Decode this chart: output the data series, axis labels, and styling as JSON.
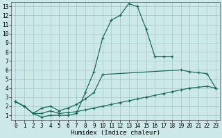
{
  "xlabel": "Humidex (Indice chaleur)",
  "background_color": "#cce8e8",
  "grid_color": "#aacccc",
  "line_color": "#1a6b5a",
  "xlim": [
    -0.5,
    23.5
  ],
  "ylim": [
    0.5,
    13.5
  ],
  "xticks": [
    0,
    1,
    2,
    3,
    4,
    5,
    6,
    7,
    8,
    9,
    10,
    11,
    12,
    13,
    14,
    15,
    16,
    17,
    18,
    19,
    20,
    21,
    22,
    23
  ],
  "yticks": [
    1,
    2,
    3,
    4,
    5,
    6,
    7,
    8,
    9,
    10,
    11,
    12,
    13
  ],
  "line1_x": [
    0,
    1,
    2,
    3,
    4,
    5,
    6,
    7,
    8,
    9,
    10,
    11,
    12,
    13,
    14,
    15,
    16,
    17,
    18
  ],
  "line1_y": [
    2.5,
    2.0,
    1.2,
    0.8,
    1.0,
    1.0,
    1.0,
    1.2,
    3.5,
    5.8,
    9.5,
    11.5,
    12.0,
    13.3,
    13.0,
    10.5,
    7.5,
    7.5,
    7.5
  ],
  "line2_x": [
    0,
    1,
    2,
    3,
    4,
    5,
    6,
    7,
    8,
    9,
    10,
    19,
    20,
    21,
    22,
    23
  ],
  "line2_y": [
    2.5,
    2.0,
    1.2,
    1.8,
    2.0,
    1.5,
    1.8,
    2.2,
    2.8,
    3.5,
    5.5,
    6.0,
    5.8,
    5.7,
    5.6,
    4.0
  ],
  "line3_x": [
    0,
    1,
    2,
    3,
    4,
    5,
    6,
    7,
    8,
    9,
    10,
    11,
    12,
    13,
    14,
    15,
    16,
    17,
    18,
    19,
    20,
    21,
    22,
    23
  ],
  "line3_y": [
    2.5,
    2.0,
    1.2,
    1.2,
    1.5,
    1.2,
    1.3,
    1.4,
    1.6,
    1.8,
    2.0,
    2.2,
    2.4,
    2.6,
    2.8,
    3.0,
    3.2,
    3.4,
    3.6,
    3.8,
    4.0,
    4.1,
    4.2,
    4.0
  ]
}
